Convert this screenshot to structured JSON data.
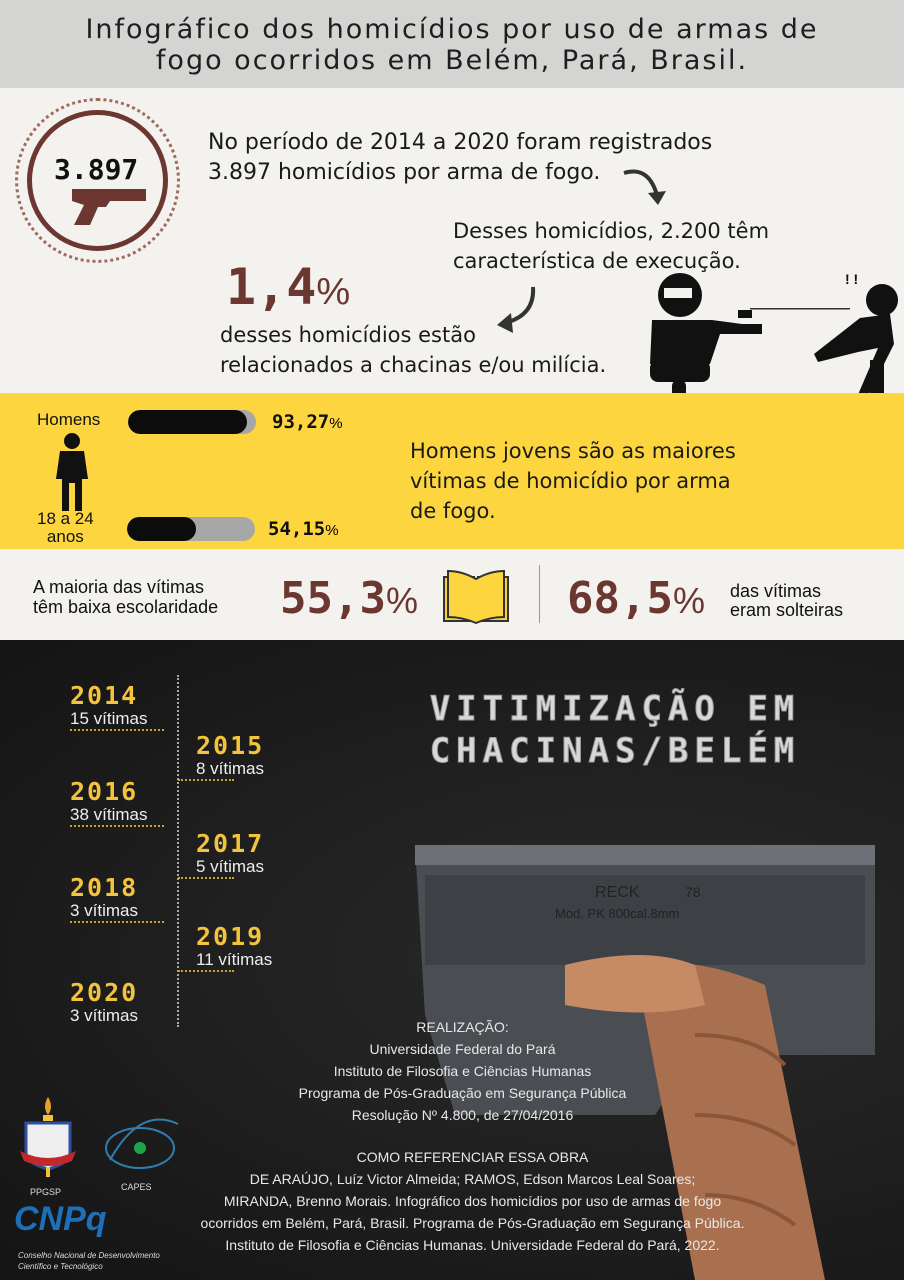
{
  "title": {
    "line1": "Infográfico dos homicídios por uso de armas de",
    "line2": "fogo ocorridos em Belém, Pará, Brasil."
  },
  "badge": {
    "value": "3.897",
    "icon": "pistol-icon"
  },
  "intro": {
    "line1": "No período de 2014 a 2020 foram registrados",
    "line2": "3.897 homicídios por arma de fogo."
  },
  "execution": {
    "line1": "Desses homicídios, 2.200 têm",
    "line2": "característica de execução."
  },
  "chacinas": {
    "value": "1,4",
    "unit": "%",
    "line1": "desses homicídios estão",
    "line2": "relacionados a chacinas e/ou milícia."
  },
  "gender": {
    "label": "Homens",
    "value": "93,27",
    "unit": "%",
    "fraction": 0.9327
  },
  "age": {
    "label1": "18 a 24",
    "label2": "anos",
    "value": "54,15",
    "unit": "%",
    "fraction": 0.5415
  },
  "young_men": {
    "line1": "Homens jovens são as maiores",
    "line2": "vítimas de homicídio por arma",
    "line3": "de fogo."
  },
  "education": {
    "line1": "A maioria das  vítimas",
    "line2": "têm baixa escolaridade",
    "value": "55,3",
    "unit": "%",
    "icon": "book-icon"
  },
  "marital": {
    "value": "68,5",
    "unit": "%",
    "line1": "das vítimas",
    "line2": "eram solteiras"
  },
  "timeline": [
    {
      "year": "2014",
      "victims": "15 vítimas"
    },
    {
      "year": "2015",
      "victims": "8 vítimas"
    },
    {
      "year": "2016",
      "victims": "38 vítimas"
    },
    {
      "year": "2017",
      "victims": "5 vítimas"
    },
    {
      "year": "2018",
      "victims": "3 vítimas"
    },
    {
      "year": "2019",
      "victims": "11 vítimas"
    },
    {
      "year": "2020",
      "victims": "3 vítimas"
    }
  ],
  "section_title": {
    "line1": "VITIMIZAÇÃO EM",
    "line2": "CHACINAS/BELÉM"
  },
  "gun_engraving": {
    "line1": "RECK",
    "line2": "Mod. PK 800cal.8mm",
    "line3": "78"
  },
  "credits": {
    "heading": "REALIZAÇÃO:",
    "lines": [
      "Universidade Federal do Pará",
      "Instituto de Filosofia e Ciências Humanas",
      "Programa de Pós-Graduação em Segurança Pública",
      "Resolução Nº 4.800, de 27/04/2016"
    ]
  },
  "reference": {
    "heading": "COMO REFERENCIAR ESSA OBRA",
    "lines": [
      "DE ARAÚJO, Luíz Victor Almeida; RAMOS, Edson Marcos Leal Soares;",
      "MIRANDA, Brenno Morais. Infográfico dos homicídios por uso de armas de fogo",
      "ocorridos em Belém, Pará, Brasil. Programa de Pós-Graduação em Segurança Pública.",
      "Instituto de Filosofia e Ciências Humanas. Universidade Federal do Pará, 2022."
    ]
  },
  "logos": {
    "ppgsp": "PPGSP",
    "capes": "CAPES",
    "cnpq": "CNPq",
    "cnpq_sub1": "Conselho Nacional de Desenvolvimento",
    "cnpq_sub2": "Científico e Tecnológico"
  },
  "colors": {
    "brown": "#6b3730",
    "yellow": "#fdd63f",
    "gold": "#f3c33c",
    "dark": "#1b1b1b",
    "light": "#f3f2ee"
  }
}
